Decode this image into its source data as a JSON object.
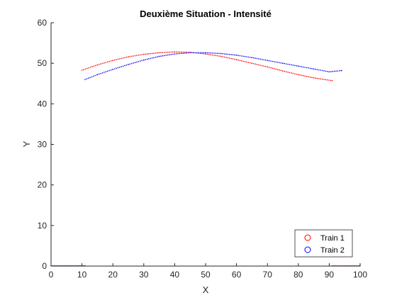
{
  "chart_data": {
    "type": "scatter",
    "title": "Deuxième Situation - Intensité",
    "xlabel": "X",
    "ylabel": "Y",
    "xlim": [
      0,
      100
    ],
    "ylim": [
      0,
      60
    ],
    "xticks": [
      0,
      10,
      20,
      30,
      40,
      50,
      60,
      70,
      80,
      90,
      100
    ],
    "yticks": [
      0,
      10,
      20,
      30,
      40,
      50,
      60
    ],
    "grid": false,
    "legend_position": "bottom-right",
    "series": [
      {
        "name": "Train 1",
        "color": "#ff0000",
        "marker": "circle",
        "x": [
          10,
          15,
          20,
          25,
          30,
          35,
          40,
          45,
          50,
          55,
          60,
          65,
          70,
          75,
          80,
          85,
          91
        ],
        "y": [
          48.3,
          49.6,
          50.7,
          51.6,
          52.2,
          52.6,
          52.8,
          52.7,
          52.3,
          51.7,
          50.9,
          50.0,
          49.1,
          48.1,
          47.2,
          46.4,
          45.7
        ],
        "baseline_x": [
          91,
          100
        ],
        "baseline_y": [
          0,
          0
        ]
      },
      {
        "name": "Train 2",
        "color": "#0000ff",
        "marker": "circle",
        "x": [
          11,
          15,
          20,
          25,
          30,
          35,
          40,
          45,
          50,
          55,
          60,
          65,
          70,
          75,
          80,
          85,
          90,
          94
        ],
        "y": [
          46.0,
          47.2,
          48.5,
          49.7,
          50.8,
          51.7,
          52.3,
          52.6,
          52.6,
          52.4,
          52.0,
          51.4,
          50.7,
          50.0,
          49.3,
          48.6,
          47.9,
          48.2
        ],
        "baseline_x": [
          0,
          11
        ],
        "baseline_y": [
          0,
          0
        ]
      }
    ]
  }
}
